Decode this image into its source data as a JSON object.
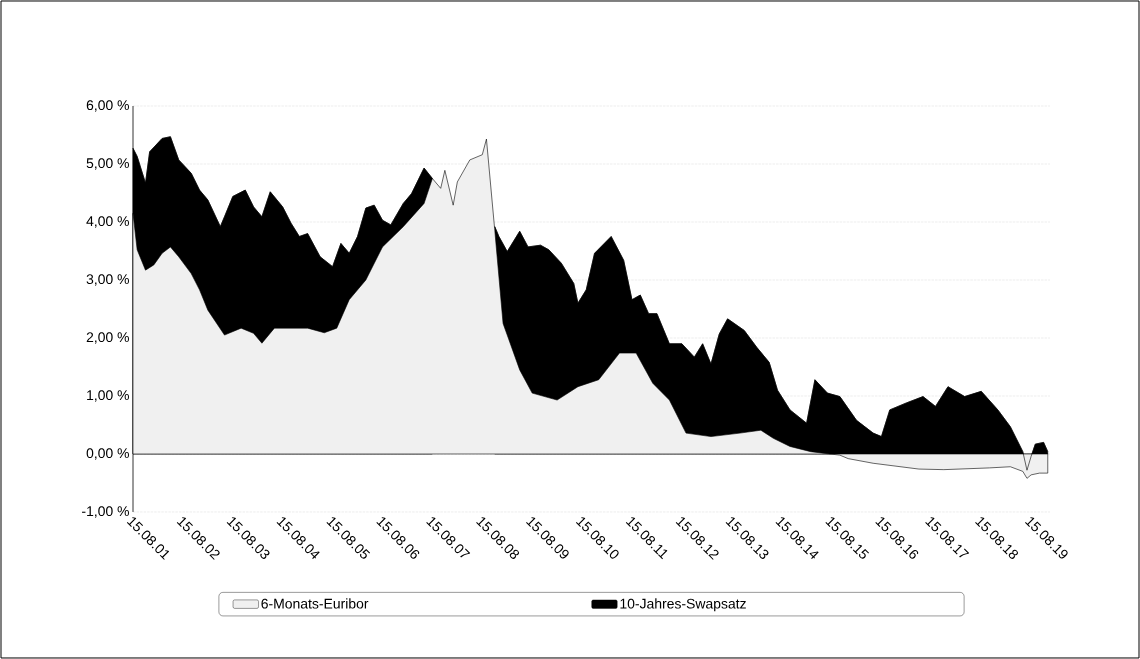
{
  "chart_data": {
    "type": "area",
    "ylim": [
      -1,
      6
    ],
    "xlim": [
      "2001-08-15",
      "2020-01-01"
    ],
    "yticks": [
      {
        "value": -1,
        "label": "-1,00 %"
      },
      {
        "value": 0,
        "label": "0,00 %"
      },
      {
        "value": 1,
        "label": "1,00 %"
      },
      {
        "value": 2,
        "label": "2,00 %"
      },
      {
        "value": 3,
        "label": "3,00 %"
      },
      {
        "value": 4,
        "label": "4,00 %"
      },
      {
        "value": 5,
        "label": "5,00 %"
      },
      {
        "value": 6,
        "label": "6,00 %"
      }
    ],
    "xticks": [
      {
        "value": "2001-08-15",
        "label": "15.08.01"
      },
      {
        "value": "2002-08-15",
        "label": "15.08.02"
      },
      {
        "value": "2003-08-15",
        "label": "15.08.03"
      },
      {
        "value": "2004-08-15",
        "label": "15.08.04"
      },
      {
        "value": "2005-08-15",
        "label": "15.08.05"
      },
      {
        "value": "2006-08-15",
        "label": "15.08.06"
      },
      {
        "value": "2007-08-15",
        "label": "15.08.07"
      },
      {
        "value": "2008-08-15",
        "label": "15.08.08"
      },
      {
        "value": "2009-08-15",
        "label": "15.08.09"
      },
      {
        "value": "2010-08-15",
        "label": "15.08.10"
      },
      {
        "value": "2011-08-15",
        "label": "15.08.11"
      },
      {
        "value": "2012-08-15",
        "label": "15.08.12"
      },
      {
        "value": "2013-08-15",
        "label": "15.08.13"
      },
      {
        "value": "2014-08-15",
        "label": "15.08.14"
      },
      {
        "value": "2015-08-15",
        "label": "15.08.15"
      },
      {
        "value": "2016-08-15",
        "label": "15.08.16"
      },
      {
        "value": "2017-08-15",
        "label": "15.08.17"
      },
      {
        "value": "2018-08-15",
        "label": "15.08.18"
      },
      {
        "value": "2019-08-15",
        "label": "15.08.19"
      }
    ],
    "grid": "y",
    "legend": "bottom",
    "series": [
      {
        "name": "6-Monats-Euribor",
        "color": "#f0f0f0",
        "x": [
          "2001-08-15",
          "2001-09",
          "2001-11",
          "2002-01",
          "2002-03",
          "2002-05",
          "2002-07",
          "2002-10",
          "2002-12",
          "2003-02",
          "2003-06",
          "2003-10",
          "2004-01",
          "2004-03",
          "2004-06",
          "2004-10",
          "2005-02",
          "2005-06",
          "2005-09",
          "2005-12",
          "2006-04",
          "2006-08",
          "2007-01",
          "2007-06",
          "2007-08",
          "2007-10",
          "2007-11",
          "2008-01",
          "2008-02",
          "2008-05",
          "2008-08",
          "2008-09",
          "2008-11",
          "2009-01",
          "2009-05",
          "2009-08",
          "2010-02",
          "2010-07",
          "2010-12",
          "2011-05",
          "2011-09",
          "2012-01",
          "2012-05",
          "2012-09",
          "2013-03",
          "2013-10",
          "2014-03",
          "2014-06",
          "2014-10",
          "2015-03",
          "2015-10",
          "2015-12",
          "2016-06",
          "2017-05",
          "2017-11",
          "2018-10",
          "2019-03",
          "2019-06",
          "2019-07",
          "2019-08",
          "2019-10",
          "2019-12"
        ],
        "values": [
          4.15,
          3.52,
          3.17,
          3.26,
          3.46,
          3.57,
          3.4,
          3.11,
          2.83,
          2.48,
          2.05,
          2.17,
          2.08,
          1.91,
          2.17,
          2.17,
          2.17,
          2.09,
          2.17,
          2.66,
          3.0,
          3.57,
          3.92,
          4.32,
          4.75,
          4.58,
          4.89,
          4.29,
          4.69,
          5.07,
          5.16,
          5.43,
          3.86,
          2.25,
          1.45,
          1.05,
          0.93,
          1.16,
          1.28,
          1.74,
          1.74,
          1.22,
          0.93,
          0.36,
          0.3,
          0.36,
          0.41,
          0.27,
          0.13,
          0.04,
          -0.02,
          -0.08,
          -0.16,
          -0.26,
          -0.27,
          -0.24,
          -0.22,
          -0.3,
          -0.42,
          -0.36,
          -0.33,
          -0.33
        ]
      },
      {
        "name": "10-Jahres-Swapsatz",
        "color": "#000000",
        "x": [
          "2001-08-15",
          "2001-09",
          "2001-11",
          "2001-12",
          "2002-03",
          "2002-05",
          "2002-07",
          "2002-10",
          "2002-12",
          "2003-02",
          "2003-05",
          "2003-06",
          "2003-08",
          "2003-11",
          "2004-01",
          "2004-03",
          "2004-05",
          "2004-08",
          "2004-10",
          "2004-12",
          "2005-02",
          "2005-05",
          "2005-08",
          "2005-10",
          "2005-12",
          "2006-02",
          "2006-04",
          "2006-06",
          "2006-08",
          "2006-10",
          "2007-01",
          "2007-03",
          "2007-06",
          "2007-08",
          "2008-03",
          "2008-11",
          "2008-12",
          "2009-02",
          "2009-05",
          "2009-07",
          "2009-10",
          "2009-12",
          "2010-03",
          "2010-06",
          "2010-07",
          "2010-09",
          "2010-11",
          "2011-03",
          "2011-06",
          "2011-08",
          "2011-10",
          "2011-12",
          "2012-02",
          "2012-05",
          "2012-08",
          "2012-11",
          "2013-01",
          "2013-03",
          "2013-05",
          "2013-07",
          "2013-11",
          "2014-02",
          "2014-05",
          "2014-07",
          "2014-10",
          "2015-02",
          "2015-04",
          "2015-07",
          "2015-10",
          "2016-02",
          "2016-06",
          "2016-08",
          "2016-10",
          "2017-02",
          "2017-06",
          "2017-09",
          "2017-12",
          "2018-04",
          "2018-08",
          "2018-12",
          "2019-03",
          "2019-06",
          "2019-07",
          "2019-08",
          "2019-09",
          "2019-11",
          "2019-12"
        ],
        "values": [
          5.27,
          5.13,
          4.67,
          5.21,
          5.44,
          5.47,
          5.07,
          4.84,
          4.55,
          4.38,
          3.92,
          4.09,
          4.44,
          4.55,
          4.26,
          4.09,
          4.52,
          4.26,
          3.98,
          3.75,
          3.8,
          3.4,
          3.23,
          3.63,
          3.46,
          3.75,
          4.24,
          4.29,
          4.03,
          3.95,
          4.32,
          4.49,
          4.93,
          4.75,
          null,
          3.92,
          3.75,
          3.49,
          3.84,
          3.57,
          3.6,
          3.52,
          3.29,
          2.94,
          2.6,
          2.83,
          3.46,
          3.75,
          3.34,
          2.66,
          2.74,
          2.42,
          2.42,
          1.9,
          1.9,
          1.67,
          1.9,
          1.55,
          2.07,
          2.33,
          2.13,
          1.84,
          1.58,
          1.1,
          0.76,
          0.53,
          1.28,
          1.05,
          0.99,
          0.58,
          0.36,
          0.3,
          0.76,
          0.88,
          0.99,
          0.82,
          1.16,
          0.99,
          1.08,
          0.76,
          0.47,
          0.04,
          -0.28,
          -0.04,
          0.17,
          0.2,
          0.04
        ]
      }
    ]
  }
}
